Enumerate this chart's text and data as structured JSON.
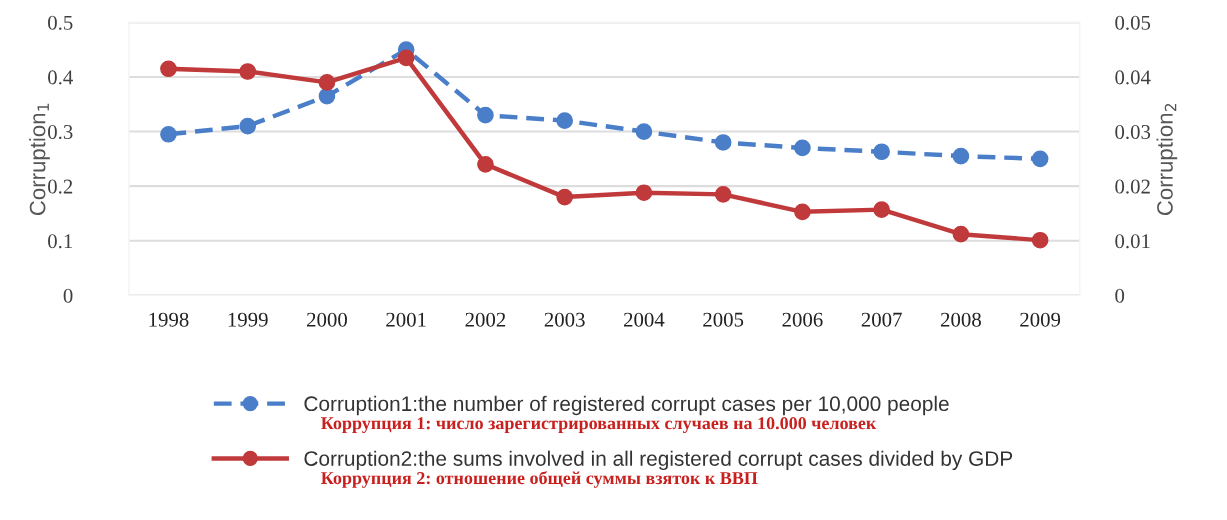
{
  "chart_data": {
    "type": "line",
    "categories": [
      "1998",
      "1999",
      "2000",
      "2001",
      "2002",
      "2003",
      "2004",
      "2005",
      "2006",
      "2007",
      "2008",
      "2009"
    ],
    "series": [
      {
        "name": "Corruption1:the number of registered corrupt cases per 10,000 people",
        "color": "#4a7ec8",
        "line_style": "dashed",
        "values": [
          0.295,
          0.31,
          0.365,
          0.45,
          0.33,
          0.32,
          0.3,
          0.28,
          0.27,
          0.263,
          0.255,
          0.25
        ]
      },
      {
        "name": "Corruption2:the sums involved in all registered corrupt cases divided by GDP",
        "color": "#c0393b",
        "line_style": "solid",
        "axis": "y2",
        "values": [
          0.0415,
          0.041,
          0.039,
          0.0435,
          0.024,
          0.018,
          0.0188,
          0.0185,
          0.0153,
          0.0157,
          0.0112,
          0.0101
        ]
      }
    ],
    "ylabel": "Corruption$_{1}$",
    "y2label": "Corruption$_{2}$",
    "ylim": [
      0,
      0.5
    ],
    "yticks": [
      0,
      0.1,
      0.2,
      0.3,
      0.4,
      0.5
    ],
    "y2lim": [
      0,
      0.05
    ],
    "y2ticks": [
      0,
      0.01,
      0.02,
      0.03,
      0.04,
      0.05
    ],
    "annotations": [
      "Коррупция 1: число зарегистрированных случаев на 10.000 человек",
      "Коррупция 2: отношение общей суммы взяток к ВВП"
    ],
    "grid": "y",
    "legend": "bottom",
    "marker": "circle"
  }
}
